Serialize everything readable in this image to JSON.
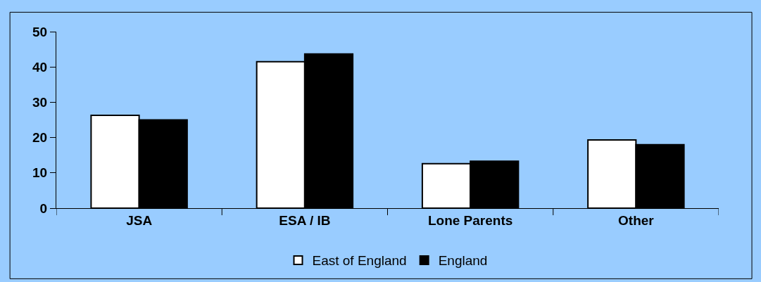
{
  "chart_data": {
    "type": "bar",
    "categories": [
      "JSA",
      "ESA / IB",
      "Lone Parents",
      "Other"
    ],
    "series": [
      {
        "name": "East of England",
        "color": "#ffffff",
        "values": [
          26.3,
          41.5,
          12.6,
          19.3
        ]
      },
      {
        "name": "England",
        "color": "#000000",
        "values": [
          25.0,
          43.7,
          13.3,
          18.0
        ]
      }
    ],
    "ylim": [
      0,
      50
    ],
    "yticks": [
      0,
      10,
      20,
      30,
      40,
      50
    ],
    "grid": false,
    "legend": "bottom"
  }
}
